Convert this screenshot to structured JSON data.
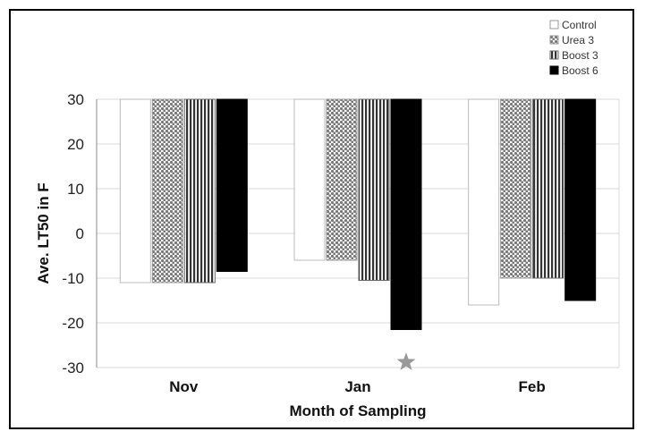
{
  "chart_data": {
    "type": "bar",
    "categories": [
      "Nov",
      "Jan",
      "Feb"
    ],
    "series": [
      {
        "name": "Control",
        "values": [
          -11,
          -6,
          -16
        ],
        "fill": "solid-white"
      },
      {
        "name": "Urea 3",
        "values": [
          -11,
          -6,
          -10
        ],
        "fill": "dots"
      },
      {
        "name": "Boost 3",
        "values": [
          -11,
          -10.5,
          -10
        ],
        "fill": "vertical-stripes"
      },
      {
        "name": "Boost 6",
        "values": [
          -8.5,
          -21.5,
          -15
        ],
        "fill": "solid-black"
      }
    ],
    "xlabel": "Month of Sampling",
    "ylabel": "Ave. LT50 in F",
    "ylim": [
      -30,
      30
    ],
    "yticks": [
      30,
      20,
      10,
      0,
      -10,
      -20,
      -30
    ],
    "grid": true,
    "legend": "top-right",
    "annotations": [
      {
        "category": "Jan",
        "series": "Boost 6",
        "marker": "star-icon",
        "color": "#999999"
      }
    ],
    "colors": {
      "control": "#ffffff",
      "urea3": "#888888",
      "boost3": "#555555",
      "boost6": "#000000",
      "grid": "#d8d8d8",
      "axis": "#888888",
      "star": "#999999"
    }
  }
}
